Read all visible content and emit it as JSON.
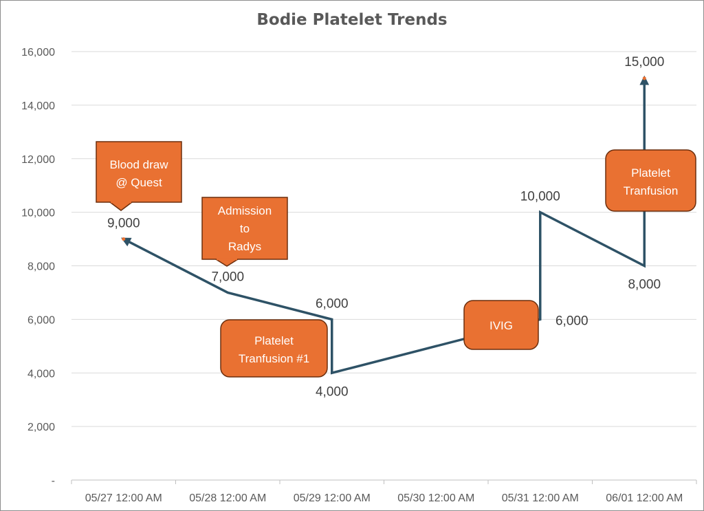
{
  "chart_data": {
    "type": "line",
    "title": "Bodie Platelet Trends",
    "xlabel": "",
    "ylabel": "",
    "ylim": [
      0,
      16000
    ],
    "y_ticks": [
      0,
      2000,
      4000,
      6000,
      8000,
      10000,
      12000,
      14000,
      16000
    ],
    "y_tick_labels": [
      "-",
      "2,000",
      "4,000",
      "6,000",
      "8,000",
      "10,000",
      "12,000",
      "14,000",
      "16,000"
    ],
    "x_tick_labels": [
      "05/27 12:00 AM",
      "05/28 12:00 AM",
      "05/29 12:00 AM",
      "05/30 12:00 AM",
      "05/31 12:00 AM",
      "06/01 12:00 AM"
    ],
    "grid": true,
    "legend": "none",
    "line_color": "#2e5266",
    "marker_color": "#e97132",
    "points": [
      {
        "x": "05/27 12:00 AM",
        "y": 9000,
        "label": "9,000"
      },
      {
        "x": "05/28 12:00 AM",
        "y": 7000,
        "label": "7,000"
      },
      {
        "x": "05/29 12:00 AM",
        "y": 6000,
        "label": "6,000"
      },
      {
        "x": "05/29 12:00 AM",
        "y": 4000,
        "label": "4,000"
      },
      {
        "x": "05/31 12:00 AM",
        "y": 6000,
        "label": "6,000"
      },
      {
        "x": "05/31 12:00 AM",
        "y": 10000,
        "label": "10,000"
      },
      {
        "x": "06/01 12:00 AM",
        "y": 8000,
        "label": "8,000"
      },
      {
        "x": "06/01 12:00 AM",
        "y": 15000,
        "label": "15,000"
      }
    ],
    "annotations": [
      {
        "text": [
          "Blood draw",
          "@ Quest"
        ],
        "fill": "#e97132"
      },
      {
        "text": [
          "Admission",
          "to",
          "Radys"
        ],
        "fill": "#e97132"
      },
      {
        "text": [
          "Platelet",
          "Tranfusion #1"
        ],
        "fill": "#e97132"
      },
      {
        "text": [
          "IVIG"
        ],
        "fill": "#e97132"
      },
      {
        "text": [
          "Platelet",
          "Tranfusion"
        ],
        "fill": "#e97132"
      }
    ]
  }
}
